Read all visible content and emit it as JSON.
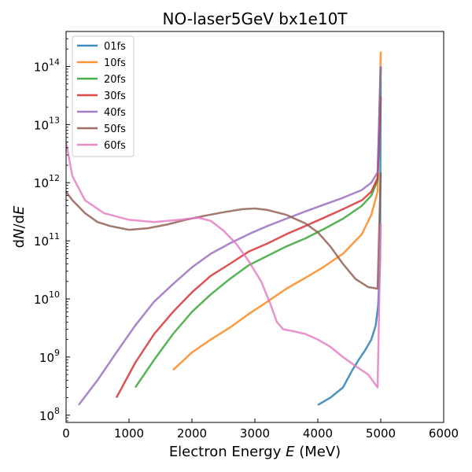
{
  "chart_data": {
    "type": "line",
    "title": "NO-laser5GeV bx1e10T",
    "xlabel": "Electron Energy E (MeV)",
    "ylabel": "dN/dE",
    "xlim": [
      0,
      6000
    ],
    "ylim": [
      75000000.0,
      400000000000000.0
    ],
    "yscale": "log",
    "grid": false,
    "legend_loc": "upper left",
    "xticks": [
      {
        "value": 0,
        "label": "0"
      },
      {
        "value": 1000,
        "label": "1000"
      },
      {
        "value": 2000,
        "label": "2000"
      },
      {
        "value": 3000,
        "label": "3000"
      },
      {
        "value": 4000,
        "label": "4000"
      },
      {
        "value": 5000,
        "label": "5000"
      },
      {
        "value": 6000,
        "label": "6000"
      }
    ],
    "yticks": [
      {
        "value": 100000000.0,
        "base": "10",
        "exp": "8"
      },
      {
        "value": 1000000000.0,
        "base": "10",
        "exp": "9"
      },
      {
        "value": 10000000000.0,
        "base": "10",
        "exp": "10"
      },
      {
        "value": 100000000000.0,
        "base": "10",
        "exp": "11"
      },
      {
        "value": 1000000000000.0,
        "base": "10",
        "exp": "12"
      },
      {
        "value": 10000000000000.0,
        "base": "10",
        "exp": "13"
      },
      {
        "value": 100000000000000.0,
        "base": "10",
        "exp": "14"
      }
    ],
    "series": [
      {
        "name": "01fs",
        "color": "#1f77b4",
        "x": [
          4000,
          4200,
          4400,
          4550,
          4650,
          4750,
          4850,
          4920,
          4960,
          4990,
          5000
        ],
        "y": [
          150000000.0,
          200000000.0,
          300000000.0,
          600000000.0,
          900000000.0,
          1300000000.0,
          2000000000.0,
          3500000000.0,
          8000000000.0,
          50000000000.0,
          100000000000000.0
        ]
      },
      {
        "name": "10fs",
        "color": "#ff7f0e",
        "x": [
          1700,
          2000,
          2300,
          2600,
          2900,
          3200,
          3500,
          3800,
          4100,
          4400,
          4700,
          4850,
          4950,
          5000
        ],
        "y": [
          600000000.0,
          1200000000.0,
          2000000000.0,
          3200000000.0,
          5500000000.0,
          9000000000.0,
          15000000000.0,
          23000000000.0,
          36000000000.0,
          60000000000.0,
          130000000000.0,
          280000000000.0,
          700000000000.0,
          180000000000000.0
        ]
      },
      {
        "name": "20fs",
        "color": "#2ca02c",
        "x": [
          1100,
          1400,
          1700,
          2000,
          2300,
          2600,
          2900,
          3200,
          3500,
          3800,
          4100,
          4400,
          4700,
          4850,
          4950,
          5000
        ],
        "y": [
          300000000.0,
          900000000.0,
          2500000000.0,
          6000000000.0,
          12000000000.0,
          22000000000.0,
          38000000000.0,
          55000000000.0,
          80000000000.0,
          110000000000.0,
          160000000000.0,
          240000000000.0,
          400000000000.0,
          600000000000.0,
          1100000000000.0,
          100000000000000.0
        ]
      },
      {
        "name": "30fs",
        "color": "#d62728",
        "x": [
          800,
          1100,
          1400,
          1700,
          2000,
          2300,
          2600,
          2900,
          3200,
          3500,
          3800,
          4100,
          4400,
          4700,
          4850,
          4950,
          5000
        ],
        "y": [
          200000000.0,
          800000000.0,
          2500000000.0,
          6000000000.0,
          13000000000.0,
          25000000000.0,
          40000000000.0,
          65000000000.0,
          90000000000.0,
          130000000000.0,
          180000000000.0,
          250000000000.0,
          350000000000.0,
          500000000000.0,
          700000000000.0,
          1200000000000.0,
          30000000000000.0
        ]
      },
      {
        "name": "40fs",
        "color": "#9467bd",
        "x": [
          200,
          500,
          800,
          1100,
          1400,
          1700,
          2000,
          2300,
          2600,
          2900,
          3200,
          3500,
          3800,
          4100,
          4400,
          4700,
          4850,
          4950,
          5000
        ],
        "y": [
          150000000.0,
          400000000.0,
          1200000000.0,
          3500000000.0,
          9000000000.0,
          18000000000.0,
          35000000000.0,
          60000000000.0,
          90000000000.0,
          130000000000.0,
          180000000000.0,
          240000000000.0,
          320000000000.0,
          420000000000.0,
          550000000000.0,
          750000000000.0,
          1000000000000.0,
          1500000000000.0,
          100000000000000.0
        ]
      },
      {
        "name": "50fs",
        "color": "#8c564b",
        "x": [
          0,
          100,
          300,
          500,
          700,
          1000,
          1300,
          1600,
          1900,
          2200,
          2500,
          2800,
          3000,
          3200,
          3500,
          3800,
          4000,
          4200,
          4400,
          4600,
          4800,
          4950,
          5000
        ],
        "y": [
          700000000000.0,
          500000000000.0,
          300000000000.0,
          210000000000.0,
          180000000000.0,
          155000000000.0,
          165000000000.0,
          190000000000.0,
          230000000000.0,
          270000000000.0,
          310000000000.0,
          350000000000.0,
          360000000000.0,
          340000000000.0,
          280000000000.0,
          200000000000.0,
          140000000000.0,
          80000000000.0,
          40000000000.0,
          22000000000.0,
          16000000000.0,
          15000000000.0,
          1500000000000.0
        ]
      },
      {
        "name": "60fs",
        "color": "#e377c2",
        "x": [
          0,
          100,
          300,
          600,
          1000,
          1400,
          1800,
          2100,
          2300,
          2500,
          2700,
          2900,
          3100,
          3250,
          3350,
          3450,
          3600,
          3800,
          4000,
          4200,
          4400,
          4600,
          4800,
          4950,
          5000
        ],
        "y": [
          5000000000000.0,
          1300000000000.0,
          500000000000.0,
          300000000000.0,
          230000000000.0,
          210000000000.0,
          230000000000.0,
          250000000000.0,
          220000000000.0,
          150000000000.0,
          90000000000.0,
          45000000000.0,
          20000000000.0,
          8000000000.0,
          4000000000.0,
          3000000000.0,
          2800000000.0,
          2500000000.0,
          2000000000.0,
          1500000000.0,
          1000000000.0,
          700000000.0,
          500000000.0,
          300000000.0,
          200000000000.0
        ]
      }
    ]
  }
}
